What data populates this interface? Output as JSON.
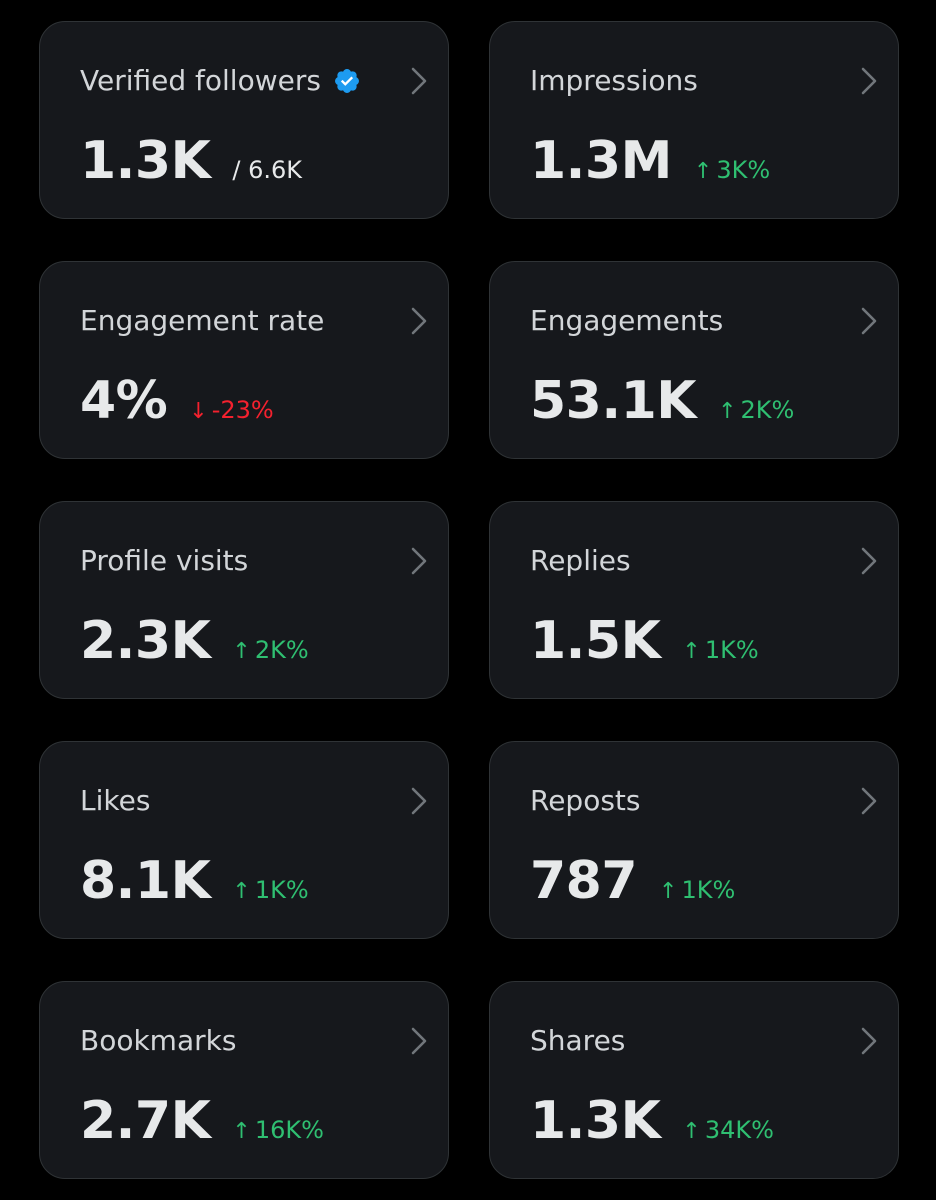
{
  "cards": [
    {
      "label": "Verified followers",
      "value": "1.3K",
      "total": "/ 6.6K",
      "verified_icon": "verified-badge-icon",
      "accent": "#1d9bf0"
    },
    {
      "label": "Impressions",
      "value": "1.3M",
      "arrow": "↑",
      "change": "3K%",
      "direction": "up"
    },
    {
      "label": "Engagement rate",
      "value": "4%",
      "arrow": "↓",
      "change": "-23%",
      "direction": "down"
    },
    {
      "label": "Engagements",
      "value": "53.1K",
      "arrow": "↑",
      "change": "2K%",
      "direction": "up"
    },
    {
      "label": "Profile visits",
      "value": "2.3K",
      "arrow": "↑",
      "change": "2K%",
      "direction": "up"
    },
    {
      "label": "Replies",
      "value": "1.5K",
      "arrow": "↑",
      "change": "1K%",
      "direction": "up"
    },
    {
      "label": "Likes",
      "value": "8.1K",
      "arrow": "↑",
      "change": "1K%",
      "direction": "up"
    },
    {
      "label": "Reposts",
      "value": "787",
      "arrow": "↑",
      "change": "1K%",
      "direction": "up"
    },
    {
      "label": "Bookmarks",
      "value": "2.7K",
      "arrow": "↑",
      "change": "16K%",
      "direction": "up"
    },
    {
      "label": "Shares",
      "value": "1.3K",
      "arrow": "↑",
      "change": "34K%",
      "direction": "up"
    }
  ],
  "colors": {
    "background": "#000000",
    "card": "#16181c",
    "border": "#2f3336",
    "up": "#2fbf71",
    "down": "#f4212e",
    "verified": "#1d9bf0"
  }
}
